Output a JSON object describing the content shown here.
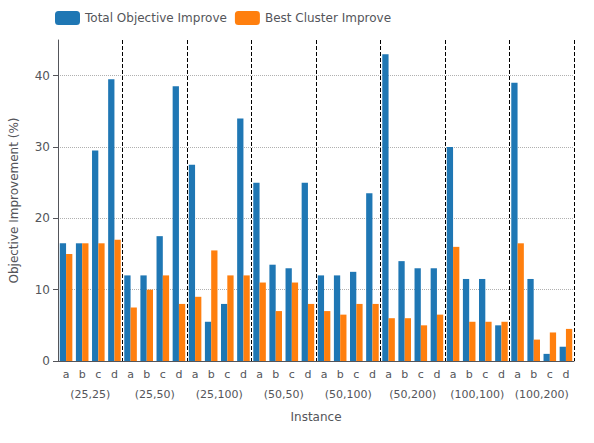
{
  "chart_data": {
    "type": "bar",
    "xlabel": "Instance",
    "ylabel": "Objective Improvement (%)",
    "categories": [
      "a",
      "b",
      "c",
      "d",
      "a",
      "b",
      "c",
      "d",
      "a",
      "b",
      "c",
      "d",
      "a",
      "b",
      "c",
      "d",
      "a",
      "b",
      "c",
      "d",
      "a",
      "b",
      "c",
      "d",
      "a",
      "b",
      "c",
      "d",
      "a",
      "b",
      "c",
      "d"
    ],
    "group_labels": [
      "(25,25)",
      "(25,50)",
      "(25,100)",
      "(50,50)",
      "(50,100)",
      "(50,200)",
      "(100,100)",
      "(100,200)"
    ],
    "series": [
      {
        "name": "Total Objective Improve",
        "color": "#1f77b4",
        "values": [
          16.5,
          16.5,
          29.5,
          39.5,
          12.0,
          12.0,
          17.5,
          38.5,
          27.5,
          5.5,
          8.0,
          34.0,
          25.0,
          13.5,
          13.0,
          25.0,
          12.0,
          12.0,
          12.5,
          23.5,
          43.0,
          14.0,
          13.0,
          13.0,
          30.0,
          11.5,
          11.5,
          5.0,
          39.0,
          11.5,
          1.0,
          2.0
        ]
      },
      {
        "name": "Best Cluster Improve",
        "color": "#ff7f0e",
        "values": [
          15.0,
          16.5,
          16.5,
          17.0,
          7.5,
          10.0,
          12.0,
          8.0,
          9.0,
          15.5,
          12.0,
          12.0,
          11.0,
          7.0,
          11.0,
          8.0,
          7.0,
          6.5,
          8.0,
          8.0,
          6.0,
          6.0,
          5.0,
          6.5,
          16.0,
          5.5,
          5.5,
          5.5,
          16.5,
          3.0,
          4.0,
          4.5
        ]
      }
    ],
    "ylim": [
      0,
      45
    ],
    "yticks": [
      0,
      10,
      20,
      30,
      40
    ],
    "grid": true,
    "legend": "upper left"
  }
}
